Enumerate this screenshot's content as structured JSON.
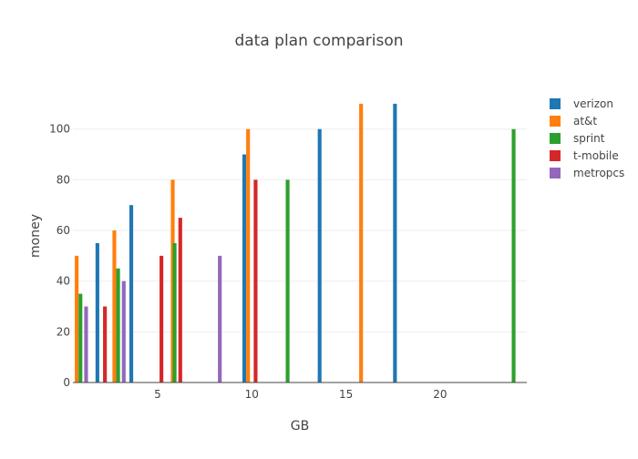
{
  "chart_data": {
    "type": "bar",
    "title": "data plan comparison",
    "xlabel": "GB",
    "ylabel": "money",
    "xlim": [
      0.5,
      24.6
    ],
    "ylim": [
      0,
      115
    ],
    "x_ticks": [
      5,
      10,
      15,
      20
    ],
    "y_ticks": [
      0,
      20,
      40,
      60,
      80,
      100
    ],
    "grid": "horizontal",
    "legend_position": "top-right",
    "bar_width": 0.2,
    "series": [
      {
        "name": "verizon",
        "color": "#1f77b4",
        "points": [
          [
            1.8,
            55
          ],
          [
            3.6,
            70
          ],
          [
            9.6,
            90
          ],
          [
            13.6,
            100
          ],
          [
            17.6,
            110
          ]
        ]
      },
      {
        "name": "at&t",
        "color": "#ff7f0e",
        "points": [
          [
            0.7,
            50
          ],
          [
            2.7,
            60
          ],
          [
            5.8,
            80
          ],
          [
            9.8,
            100
          ],
          [
            15.8,
            110
          ]
        ]
      },
      {
        "name": "sprint",
        "color": "#2ca02c",
        "points": [
          [
            0.9,
            35
          ],
          [
            2.9,
            45
          ],
          [
            5.9,
            55
          ],
          [
            11.9,
            80
          ],
          [
            23.9,
            100
          ]
        ]
      },
      {
        "name": "t-mobile",
        "color": "#d62728",
        "points": [
          [
            2.2,
            30
          ],
          [
            5.2,
            50
          ],
          [
            6.2,
            65
          ],
          [
            10.2,
            80
          ]
        ]
      },
      {
        "name": "metropcs",
        "color": "#9467bd",
        "points": [
          [
            1.2,
            30
          ],
          [
            3.2,
            40
          ],
          [
            8.3,
            50
          ]
        ]
      }
    ]
  }
}
